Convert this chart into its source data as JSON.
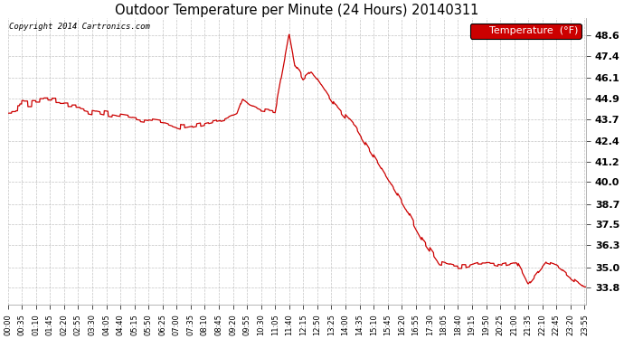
{
  "title": "Outdoor Temperature per Minute (24 Hours) 20140311",
  "copyright_text": "Copyright 2014 Cartronics.com",
  "legend_label": "Temperature  (°F)",
  "line_color": "#cc0000",
  "background_color": "#ffffff",
  "grid_color": "#aaaaaa",
  "yticks": [
    33.8,
    35.0,
    36.3,
    37.5,
    38.7,
    40.0,
    41.2,
    42.4,
    43.7,
    44.9,
    46.1,
    47.4,
    48.6
  ],
  "ylim": [
    32.8,
    49.6
  ],
  "legend_bg": "#cc0000",
  "legend_text_color": "#ffffff",
  "figwidth": 6.9,
  "figheight": 3.75,
  "dpi": 100
}
